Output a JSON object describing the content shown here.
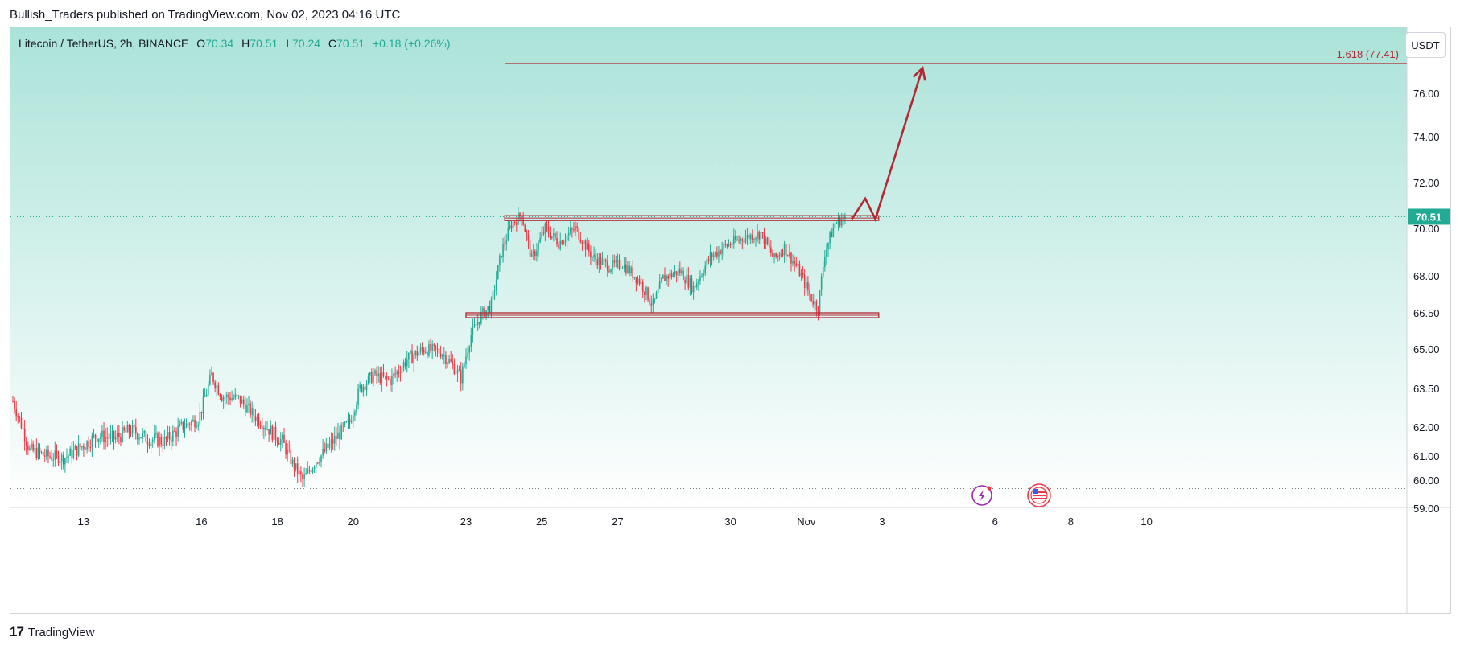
{
  "header": {
    "published_by": "Bullish_Traders published on TradingView.com, Nov 02, 2023 04:16 UTC"
  },
  "legend": {
    "symbol": "Litecoin / TetherUS, 2h, BINANCE",
    "open_label": "O",
    "open": "70.34",
    "high_label": "H",
    "high": "70.51",
    "low_label": "L",
    "low": "70.24",
    "close_label": "C",
    "close": "70.51",
    "change": "+0.18 (+0.26%)"
  },
  "currency": "USDT",
  "footer": {
    "brand": "TradingView",
    "logo_mark": "17"
  },
  "colors": {
    "up": "#22ab94",
    "down": "#f23645",
    "drawing": "#b22833",
    "bg_top": "#abe3d9",
    "bg_bottom": "#ffffff"
  },
  "chart_data": {
    "type": "candlestick",
    "title": "Litecoin / TetherUS, 2h, BINANCE",
    "y_ticks": [
      "59.00",
      "60.00",
      "61.00",
      "62.00",
      "63.50",
      "65.00",
      "66.50",
      "68.00",
      "70.00",
      "72.00",
      "74.00",
      "76.00"
    ],
    "y_tick_values": [
      59.0,
      60.0,
      61.0,
      62.0,
      63.5,
      65.0,
      66.5,
      68.0,
      70.0,
      72.0,
      74.0,
      76.0
    ],
    "x_ticks": [
      "13",
      "16",
      "18",
      "20",
      "23",
      "25",
      "27",
      "30",
      "Nov",
      "3",
      "6",
      "8",
      "10"
    ],
    "x_tick_index": [
      42,
      112,
      157,
      202,
      269,
      314,
      359,
      426,
      471,
      516,
      583,
      628,
      673
    ],
    "last_price_label": "70.51",
    "last_price": 70.51,
    "fib_label": "1.618 (77.41)",
    "fib_level": 77.41,
    "resistance": 70.45,
    "support": 66.4,
    "dotted_high": 72.9,
    "dotted_low": 59.7,
    "projection_path": [
      [
        498,
        70.4
      ],
      [
        506,
        71.3
      ],
      [
        512,
        70.4
      ],
      [
        540,
        77.2
      ]
    ],
    "ohlc_path": [
      [
        0,
        63.0
      ],
      [
        10,
        61.2
      ],
      [
        20,
        61.0
      ],
      [
        30,
        60.9
      ],
      [
        40,
        61.3
      ],
      [
        50,
        61.7
      ],
      [
        60,
        61.6
      ],
      [
        70,
        61.9
      ],
      [
        80,
        61.6
      ],
      [
        90,
        61.5
      ],
      [
        100,
        62.0
      ],
      [
        110,
        62.3
      ],
      [
        118,
        64.0
      ],
      [
        124,
        63.2
      ],
      [
        134,
        63.1
      ],
      [
        144,
        62.4
      ],
      [
        154,
        61.8
      ],
      [
        160,
        61.5
      ],
      [
        166,
        60.7
      ],
      [
        172,
        60.0
      ],
      [
        180,
        60.8
      ],
      [
        190,
        61.5
      ],
      [
        200,
        62.2
      ],
      [
        206,
        63.5
      ],
      [
        214,
        64.0
      ],
      [
        224,
        63.8
      ],
      [
        234,
        64.6
      ],
      [
        244,
        65.0
      ],
      [
        254,
        64.9
      ],
      [
        262,
        64.3
      ],
      [
        266,
        63.9
      ],
      [
        272,
        65.6
      ],
      [
        278,
        66.4
      ],
      [
        284,
        66.8
      ],
      [
        290,
        69.0
      ],
      [
        296,
        70.2
      ],
      [
        302,
        70.6
      ],
      [
        308,
        68.7
      ],
      [
        316,
        70.0
      ],
      [
        324,
        69.4
      ],
      [
        334,
        70.0
      ],
      [
        344,
        68.8
      ],
      [
        354,
        68.4
      ],
      [
        362,
        68.5
      ],
      [
        372,
        67.8
      ],
      [
        380,
        66.8
      ],
      [
        386,
        67.9
      ],
      [
        396,
        68.2
      ],
      [
        404,
        67.5
      ],
      [
        414,
        68.8
      ],
      [
        424,
        69.3
      ],
      [
        434,
        69.6
      ],
      [
        444,
        69.8
      ],
      [
        452,
        68.7
      ],
      [
        458,
        69.2
      ],
      [
        466,
        68.3
      ],
      [
        474,
        67.1
      ],
      [
        478,
        66.7
      ],
      [
        482,
        69.0
      ],
      [
        488,
        70.2
      ],
      [
        494,
        70.51
      ]
    ]
  }
}
